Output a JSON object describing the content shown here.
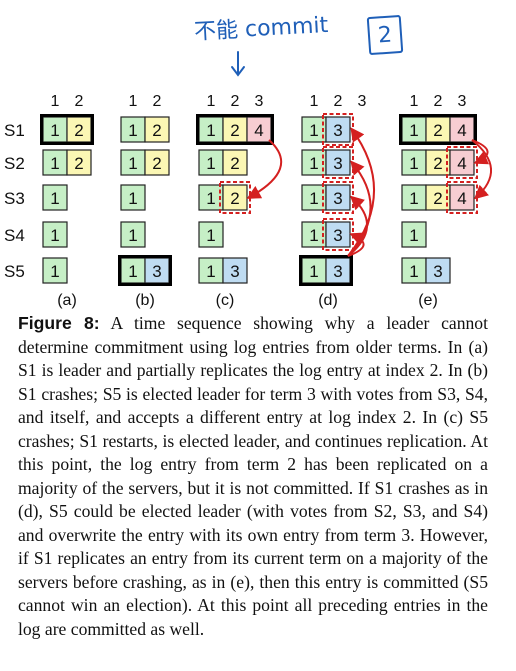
{
  "handwritten_note": {
    "text": "不能 commit",
    "boxed_number": "2"
  },
  "colors": {
    "term1": "#c6efc6",
    "term2": "#fbf7b4",
    "term3": "#bfdcf2",
    "term4": "#f7cdd2",
    "accent": "#d42020",
    "note": "#1f5fb8"
  },
  "servers": [
    "S1",
    "S2",
    "S3",
    "S4",
    "S5"
  ],
  "panels": [
    {
      "label": "(a)",
      "indexes": [
        "1",
        "2"
      ],
      "logs": [
        [
          "1",
          "2"
        ],
        [
          "1",
          "2"
        ],
        [
          "1"
        ],
        [
          "1"
        ],
        [
          "1"
        ]
      ],
      "leader": 0,
      "dashed": [],
      "arrows": []
    },
    {
      "label": "(b)",
      "indexes": [
        "1",
        "2"
      ],
      "logs": [
        [
          "1",
          "2"
        ],
        [
          "1",
          "2"
        ],
        [
          "1"
        ],
        [
          "1"
        ],
        [
          "1",
          "3"
        ]
      ],
      "leader": 4,
      "dashed": [],
      "arrows": []
    },
    {
      "label": "(c)",
      "indexes": [
        "1",
        "2",
        "3"
      ],
      "logs": [
        [
          "1",
          "2",
          "4"
        ],
        [
          "1",
          "2"
        ],
        [
          "1",
          "2"
        ],
        [
          "1"
        ],
        [
          "1",
          "3"
        ]
      ],
      "leader": 0,
      "dashed": [
        [
          2,
          1
        ]
      ],
      "arrows": [
        {
          "from": [
            0,
            2
          ],
          "to": [
            2,
            1
          ]
        }
      ]
    },
    {
      "label": "(d)",
      "indexes": [
        "1",
        "2",
        "3"
      ],
      "logs": [
        [
          "1",
          "3"
        ],
        [
          "1",
          "3"
        ],
        [
          "1",
          "3"
        ],
        [
          "1",
          "3"
        ],
        [
          "1",
          "3"
        ]
      ],
      "leader": 4,
      "dashed": [
        [
          0,
          1
        ],
        [
          1,
          1
        ],
        [
          2,
          1
        ],
        [
          3,
          1
        ]
      ],
      "arrows": [
        {
          "from": [
            4,
            1
          ],
          "to": [
            0,
            1
          ]
        },
        {
          "from": [
            4,
            1
          ],
          "to": [
            1,
            1
          ]
        },
        {
          "from": [
            4,
            1
          ],
          "to": [
            2,
            1
          ]
        },
        {
          "from": [
            4,
            1
          ],
          "to": [
            3,
            1
          ]
        }
      ]
    },
    {
      "label": "(e)",
      "indexes": [
        "1",
        "2",
        "3"
      ],
      "logs": [
        [
          "1",
          "2",
          "4"
        ],
        [
          "1",
          "2",
          "4"
        ],
        [
          "1",
          "2",
          "4"
        ],
        [
          "1"
        ],
        [
          "1",
          "3"
        ]
      ],
      "leader": 0,
      "dashed": [
        [
          1,
          2
        ],
        [
          2,
          2
        ]
      ],
      "arrows": [
        {
          "from": [
            0,
            2
          ],
          "to": [
            1,
            2
          ]
        },
        {
          "from": [
            0,
            2
          ],
          "to": [
            2,
            2
          ]
        }
      ]
    }
  ],
  "caption": {
    "label": "Figure 8:",
    "text": " A time sequence showing why a leader cannot determine commitment using log entries from older terms. In (a) S1 is leader and partially replicates the log entry at index 2. In (b) S1 crashes; S5 is elected leader for term 3 with votes from S3, S4, and itself, and accepts a different entry at log index 2. In (c) S5 crashes; S1 restarts, is elected leader, and continues replication. At this point, the log entry from term 2 has been replicated on a majority of the servers, but it is not committed. If S1 crashes as in (d), S5 could be elected leader (with votes from S2, S3, and S4) and overwrite the entry with its own entry from term 3. However, if S1 replicates an entry from its current term on a majority of the servers before crashing, as in (e), then this entry is committed (S5 cannot win an election). At this point all preceding entries in the log are committed as well."
  }
}
